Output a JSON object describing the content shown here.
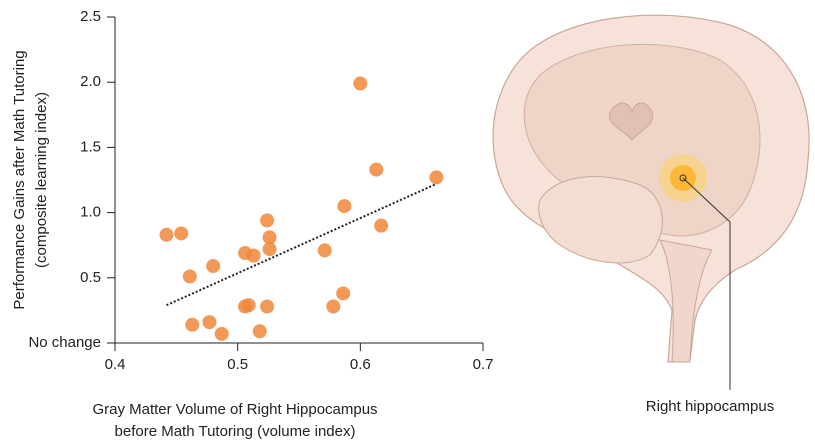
{
  "chart_data": {
    "type": "scatter",
    "x_label": [
      "Gray Matter Volume of Right Hippocampus",
      "before Math Tutoring (volume index)"
    ],
    "y_label": [
      "Performance Gains after Math Tutoring",
      "(composite learning index)"
    ],
    "xlim": [
      0.4,
      0.7
    ],
    "xticks": [
      0.4,
      0.5,
      0.6,
      0.7
    ],
    "ylim": [
      0,
      2.5
    ],
    "yticks": [
      {
        "value": 0,
        "label": "No change"
      },
      0.5,
      {
        "value": 1,
        "label": "1.0"
      },
      1.5,
      {
        "value": 2,
        "label": "2.0"
      },
      2.5
    ],
    "color": "#f0873a",
    "x": [
      0.442,
      0.454,
      0.461,
      0.463,
      0.477,
      0.48,
      0.487,
      0.506,
      0.509,
      0.506,
      0.513,
      0.518,
      0.524,
      0.524,
      0.526,
      0.526,
      0.571,
      0.578,
      0.586,
      0.587,
      0.6,
      0.613,
      0.617,
      0.662
    ],
    "values": [
      0.83,
      0.84,
      0.51,
      0.14,
      0.16,
      0.59,
      0.07,
      0.28,
      0.29,
      0.69,
      0.67,
      0.09,
      0.28,
      0.94,
      0.81,
      0.72,
      0.71,
      0.28,
      0.38,
      1.05,
      1.99,
      1.33,
      0.9,
      1.27
    ],
    "trend": {
      "x": [
        0.442,
        0.662
      ],
      "y": [
        0.29,
        1.22
      ],
      "color": "#222222"
    },
    "annotation": "Right hippocampus"
  }
}
